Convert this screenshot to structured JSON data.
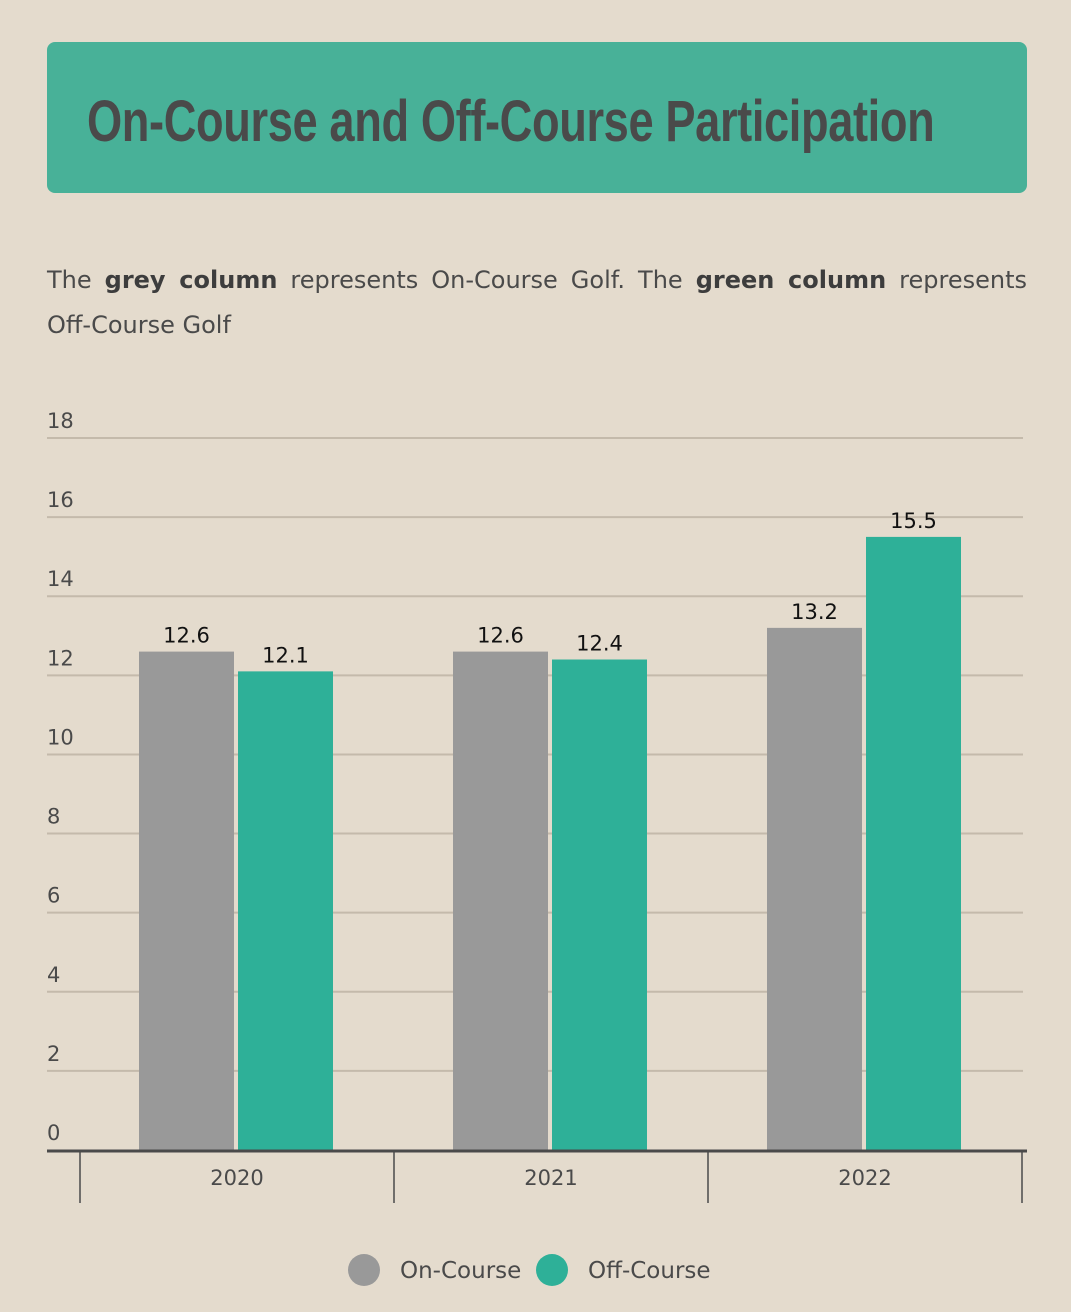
{
  "title": "On-Course and Off-Course Participation",
  "subtitle": {
    "p1": "The ",
    "b1": "grey column",
    "p2": " represents On-Course Golf. The ",
    "b2": "green column",
    "p3": " represents Off-Course Golf"
  },
  "colors": {
    "background": "#e4dbcd",
    "title_box": "#48b198",
    "on_course": "#999999",
    "off_course": "#2eb098"
  },
  "chart_data": {
    "type": "bar",
    "categories": [
      "2020",
      "2021",
      "2022"
    ],
    "series": [
      {
        "name": "On-Course",
        "values": [
          12.6,
          12.6,
          13.2
        ]
      },
      {
        "name": "Off-Course",
        "values": [
          12.1,
          12.4,
          15.5
        ]
      }
    ],
    "ylim": [
      0,
      18
    ],
    "yticks": [
      "0",
      "2",
      "4",
      "6",
      "8",
      "10",
      "12",
      "14",
      "16",
      "18"
    ],
    "grid": true,
    "legend": "bottom"
  }
}
